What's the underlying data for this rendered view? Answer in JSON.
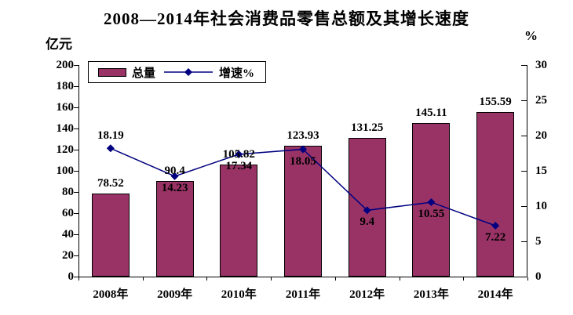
{
  "title": "2008—2014年社会消费品零售总额及其增长速度",
  "left_axis": {
    "unit": "亿元",
    "min": 0,
    "max": 200,
    "step": 20
  },
  "right_axis": {
    "unit": "%",
    "min": 0,
    "max": 30,
    "step": 5
  },
  "legend": [
    {
      "label": "总量",
      "swatch": "bar"
    },
    {
      "label": "增速%",
      "swatch": "line-diamond"
    }
  ],
  "colors": {
    "bar": "#993366",
    "bar_border": "#000000",
    "line": "#000080",
    "marker": "#000080",
    "text": "#000000",
    "axis": "#000000",
    "background": "#ffffff"
  },
  "chart_data": {
    "type": "bar+line",
    "categories": [
      "2008年",
      "2009年",
      "2010年",
      "2011年",
      "2012年",
      "2013年",
      "2014年"
    ],
    "series": [
      {
        "name": "总量",
        "type": "bar",
        "axis": "left",
        "values": [
          78.52,
          90.4,
          105.82,
          123.93,
          131.25,
          145.11,
          155.59
        ],
        "labels": [
          "78.52",
          "90.4",
          "105.82",
          "123.93",
          "131.25",
          "145.11",
          "155.59"
        ]
      },
      {
        "name": "增速%",
        "type": "line",
        "axis": "right",
        "values": [
          18.19,
          14.23,
          17.34,
          18.05,
          9.4,
          10.55,
          7.22
        ],
        "labels": [
          "18.19",
          "14.23",
          "17.34",
          "18.05",
          "9.4",
          "10.55",
          "7.22"
        ],
        "label_placement": [
          "above",
          "below",
          "below",
          "below",
          "below",
          "below",
          "below"
        ]
      }
    ],
    "left_ylim": [
      0,
      200
    ],
    "right_ylim": [
      0,
      30
    ],
    "grid": false,
    "legend_position": "top-left-inside"
  }
}
